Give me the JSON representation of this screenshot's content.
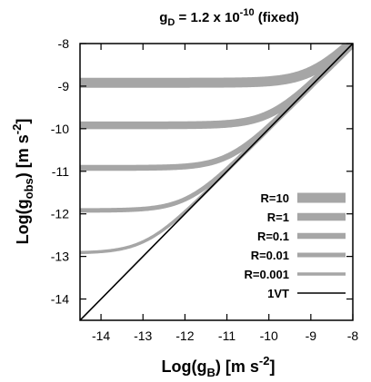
{
  "chart_data": {
    "type": "line",
    "title": "g_D = 1.2 x 10^-10 (fixed)",
    "title_parts": {
      "g": "g",
      "sub": "D",
      "mid": " = 1.2 x 10",
      "sup": "-10",
      "tail": " (fixed)"
    },
    "xlabel_parts": {
      "a": "Log(g",
      "sub": "B",
      "b": ") [m s",
      "sup": "-2",
      "c": "]"
    },
    "ylabel_parts": {
      "a": "Log(g",
      "sub": "obs",
      "b": ") [m s",
      "sup": "-2",
      "c": "]"
    },
    "xlim": [
      -14.5,
      -8
    ],
    "ylim": [
      -14.5,
      -8
    ],
    "xticks": [
      -14,
      -13,
      -12,
      -11,
      -10,
      -9,
      -8
    ],
    "yticks": [
      -14,
      -13,
      -12,
      -11,
      -10,
      -9,
      -8
    ],
    "xtick_labels": [
      "-14",
      "-13",
      "-12",
      "-11",
      "-10",
      "-9",
      "-8"
    ],
    "ytick_labels": [
      "-14",
      "-13",
      "-12",
      "-11",
      "-10",
      "-9",
      "-8"
    ],
    "gD": 1.2e-10,
    "series": [
      {
        "name": "R=10",
        "R": 10,
        "color": "#a6a6a6",
        "width": "thickest"
      },
      {
        "name": "R=1",
        "R": 1,
        "color": "#a6a6a6",
        "width": "thick"
      },
      {
        "name": "R=0.1",
        "R": 0.1,
        "color": "#a6a6a6",
        "width": "medium"
      },
      {
        "name": "R=0.01",
        "R": 0.01,
        "color": "#a6a6a6",
        "width": "thin"
      },
      {
        "name": "R=0.001",
        "R": 0.001,
        "color": "#a6a6a6",
        "width": "thinnest"
      },
      {
        "name": "1VT",
        "relation": "y = x",
        "color": "#000000",
        "width": "hairline"
      }
    ],
    "legend_position": "lower-right",
    "grid": false
  }
}
